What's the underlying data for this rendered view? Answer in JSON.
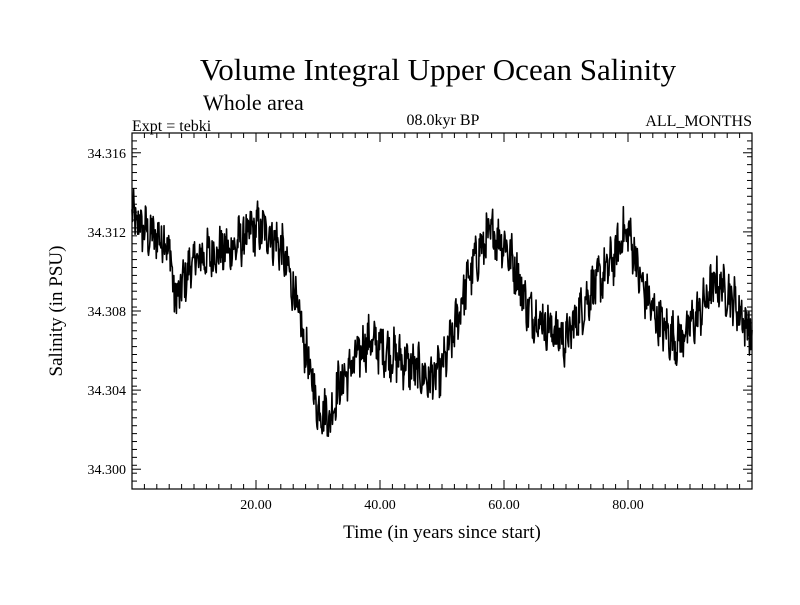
{
  "chart_data": {
    "type": "line",
    "title": "Volume Integral Upper Ocean Salinity",
    "subtitle": "Whole area",
    "left_label": "Expt = tebki",
    "center_label": "08.0kyr BP",
    "right_label": "ALL_MONTHS",
    "xlabel": "Time (in years since start)",
    "ylabel": "Salinity (in PSU)",
    "xlim": [
      0,
      100
    ],
    "ylim": [
      34.299,
      34.317
    ],
    "xticks": [
      {
        "value": 20,
        "label": "20.00"
      },
      {
        "value": 40,
        "label": "40.00"
      },
      {
        "value": 60,
        "label": "60.00"
      },
      {
        "value": 80,
        "label": "80.00"
      }
    ],
    "yticks": [
      {
        "value": 34.3,
        "label": "34.300"
      },
      {
        "value": 34.304,
        "label": "34.304"
      },
      {
        "value": 34.308,
        "label": "34.308"
      },
      {
        "value": 34.312,
        "label": "34.312"
      },
      {
        "value": 34.316,
        "label": "34.316"
      }
    ],
    "grid": false,
    "series": [
      {
        "name": "Salinity",
        "color": "#000000",
        "noise_amplitude": 0.0011,
        "samples_per_year": 12,
        "x": [
          0,
          1,
          2,
          3,
          4,
          5,
          6,
          7,
          8,
          9,
          10,
          12,
          14,
          16,
          18,
          20,
          22,
          24,
          26,
          27,
          28,
          29,
          30,
          31,
          32,
          33,
          34,
          36,
          38,
          40,
          42,
          44,
          46,
          48,
          50,
          52,
          54,
          56,
          57,
          58,
          59,
          60,
          62,
          64,
          66,
          68,
          70,
          72,
          74,
          76,
          78,
          79,
          80,
          81,
          82,
          84,
          86,
          88,
          90,
          92,
          94,
          96,
          98,
          100
        ],
        "values": [
          34.3128,
          34.3124,
          34.3121,
          34.3118,
          34.3117,
          34.3117,
          34.3112,
          34.3085,
          34.3092,
          34.31,
          34.3105,
          34.3108,
          34.311,
          34.3111,
          34.3117,
          34.3122,
          34.312,
          34.3112,
          34.3092,
          34.3075,
          34.306,
          34.3045,
          34.303,
          34.303,
          34.3025,
          34.304,
          34.3045,
          34.3055,
          34.3065,
          34.3062,
          34.3058,
          34.3054,
          34.305,
          34.3045,
          34.305,
          34.307,
          34.3095,
          34.311,
          34.3115,
          34.312,
          34.3117,
          34.3115,
          34.31,
          34.308,
          34.3075,
          34.307,
          34.3065,
          34.3078,
          34.309,
          34.3098,
          34.3108,
          34.3118,
          34.312,
          34.311,
          34.3095,
          34.308,
          34.307,
          34.3065,
          34.3072,
          34.3082,
          34.3095,
          34.309,
          34.308,
          34.3068
        ]
      }
    ]
  }
}
